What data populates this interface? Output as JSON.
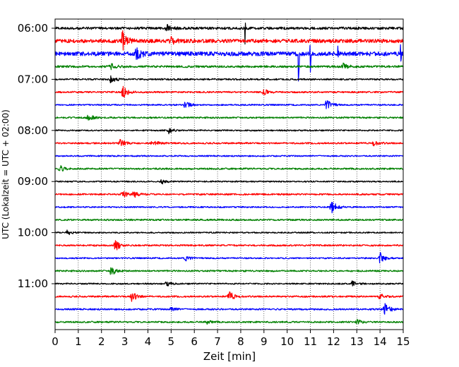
{
  "chart_data": {
    "type": "line",
    "subtype": "helicorder-seismogram",
    "xlabel": "Zeit  [min]",
    "ylabel": "UTC (Lokalzeit = UTC + 02:00)",
    "xlim": [
      0,
      15
    ],
    "x_ticks": [
      "0",
      "1",
      "2",
      "3",
      "4",
      "5",
      "6",
      "7",
      "8",
      "9",
      "10",
      "11",
      "12",
      "13",
      "14",
      "15"
    ],
    "y_tick_labels": [
      "06:00",
      "07:00",
      "08:00",
      "09:00",
      "10:00",
      "11:00"
    ],
    "trace_interval_minutes": 15,
    "trace_count": 24,
    "traces_per_label": 4,
    "grid": "vertical dotted lines at each minute",
    "series_colors": [
      "#000000",
      "#ff0000",
      "#0000ff",
      "#008000"
    ],
    "events": [
      {
        "trace": 0,
        "minute": 4.8,
        "amp": 0.6
      },
      {
        "trace": 0,
        "minute": 8.2,
        "amp": 3.0,
        "spike": true
      },
      {
        "trace": 1,
        "minute": 2.9,
        "amp": 1.8
      },
      {
        "trace": 1,
        "minute": 5.0,
        "amp": 0.6
      },
      {
        "trace": 2,
        "minute": 10.5,
        "amp": 4.0,
        "spike": true
      },
      {
        "trace": 2,
        "minute": 11.0,
        "amp": 3.0,
        "spike": true
      },
      {
        "trace": 2,
        "minute": 3.5,
        "amp": 1.2
      },
      {
        "trace": 2,
        "minute": 12.2,
        "amp": 1.4,
        "spike": true
      },
      {
        "trace": 2,
        "minute": 14.9,
        "amp": 1.4,
        "spike": true
      },
      {
        "trace": 3,
        "minute": 2.4,
        "amp": 0.5
      },
      {
        "trace": 3,
        "minute": 12.4,
        "amp": 0.5
      },
      {
        "trace": 4,
        "minute": 2.4,
        "amp": 0.7
      },
      {
        "trace": 5,
        "minute": 2.9,
        "amp": 1.3
      },
      {
        "trace": 5,
        "minute": 9.0,
        "amp": 0.5
      },
      {
        "trace": 6,
        "minute": 5.6,
        "amp": 0.7
      },
      {
        "trace": 6,
        "minute": 11.7,
        "amp": 1.0
      },
      {
        "trace": 7,
        "minute": 1.4,
        "amp": 1.0
      },
      {
        "trace": 8,
        "minute": 4.9,
        "amp": 0.5
      },
      {
        "trace": 9,
        "minute": 2.8,
        "amp": 0.6
      },
      {
        "trace": 9,
        "minute": 4.2,
        "amp": 0.6
      },
      {
        "trace": 9,
        "minute": 13.7,
        "amp": 0.5
      },
      {
        "trace": 11,
        "minute": 0.2,
        "amp": 0.6
      },
      {
        "trace": 12,
        "minute": 4.6,
        "amp": 0.4
      },
      {
        "trace": 13,
        "minute": 2.9,
        "amp": 0.6
      },
      {
        "trace": 13,
        "minute": 3.4,
        "amp": 0.7
      },
      {
        "trace": 14,
        "minute": 11.9,
        "amp": 1.3
      },
      {
        "trace": 16,
        "minute": 0.5,
        "amp": 0.5
      },
      {
        "trace": 17,
        "minute": 2.6,
        "amp": 1.0
      },
      {
        "trace": 18,
        "minute": 5.6,
        "amp": 0.5
      },
      {
        "trace": 18,
        "minute": 14.0,
        "amp": 1.0
      },
      {
        "trace": 19,
        "minute": 2.4,
        "amp": 0.9
      },
      {
        "trace": 20,
        "minute": 4.8,
        "amp": 0.4
      },
      {
        "trace": 20,
        "minute": 12.8,
        "amp": 0.5
      },
      {
        "trace": 21,
        "minute": 3.3,
        "amp": 1.0
      },
      {
        "trace": 21,
        "minute": 7.5,
        "amp": 0.9
      },
      {
        "trace": 21,
        "minute": 14.0,
        "amp": 0.5
      },
      {
        "trace": 22,
        "minute": 14.2,
        "amp": 1.2
      },
      {
        "trace": 22,
        "minute": 5.0,
        "amp": 0.4
      },
      {
        "trace": 23,
        "minute": 6.5,
        "amp": 0.4
      },
      {
        "trace": 23,
        "minute": 13.0,
        "amp": 0.5
      }
    ],
    "trace_noise": [
      0.55,
      0.8,
      0.9,
      0.45,
      0.35,
      0.35,
      0.3,
      0.35,
      0.3,
      0.35,
      0.3,
      0.35,
      0.3,
      0.35,
      0.3,
      0.35,
      0.3,
      0.35,
      0.3,
      0.35,
      0.3,
      0.35,
      0.35,
      0.35
    ]
  }
}
